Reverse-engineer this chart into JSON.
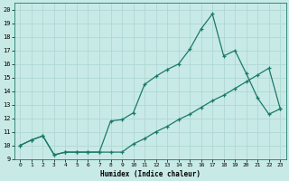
{
  "xlabel": "Humidex (Indice chaleur)",
  "bg_color": "#c8eae6",
  "grid_color": "#b0d8d4",
  "line_color": "#1a7a6a",
  "xlim": [
    -0.5,
    23.5
  ],
  "ylim": [
    9,
    20.5
  ],
  "yticks": [
    9,
    10,
    11,
    12,
    13,
    14,
    15,
    16,
    17,
    18,
    19,
    20
  ],
  "xticks": [
    0,
    1,
    2,
    3,
    4,
    5,
    6,
    7,
    8,
    9,
    10,
    11,
    12,
    13,
    14,
    15,
    16,
    17,
    18,
    19,
    20,
    21,
    22,
    23
  ],
  "line1_x": [
    0,
    1,
    2,
    3,
    4,
    5,
    6,
    7,
    8,
    9,
    10,
    11,
    12,
    13,
    14,
    15,
    16,
    17,
    18,
    19,
    20,
    21,
    22,
    23
  ],
  "line1_y": [
    10.0,
    10.4,
    10.7,
    9.3,
    9.5,
    9.5,
    9.5,
    9.5,
    9.5,
    9.5,
    10.1,
    10.5,
    11.0,
    11.4,
    11.9,
    12.3,
    12.8,
    13.3,
    13.7,
    14.2,
    14.7,
    15.2,
    15.7,
    12.7
  ],
  "line2_x": [
    0,
    1,
    2,
    3,
    4,
    5,
    6,
    7,
    8,
    9,
    10,
    11,
    12,
    13,
    14,
    15,
    16,
    17,
    18,
    19,
    20,
    21,
    22,
    23
  ],
  "line2_y": [
    10.0,
    10.4,
    10.7,
    9.3,
    9.5,
    9.5,
    9.5,
    9.5,
    11.8,
    11.9,
    12.4,
    14.5,
    15.1,
    15.6,
    16.0,
    17.1,
    18.6,
    19.7,
    16.6,
    17.0,
    15.3,
    13.5,
    12.3,
    12.7
  ],
  "marker": "+",
  "markersize": 3.5,
  "linewidth": 0.9
}
